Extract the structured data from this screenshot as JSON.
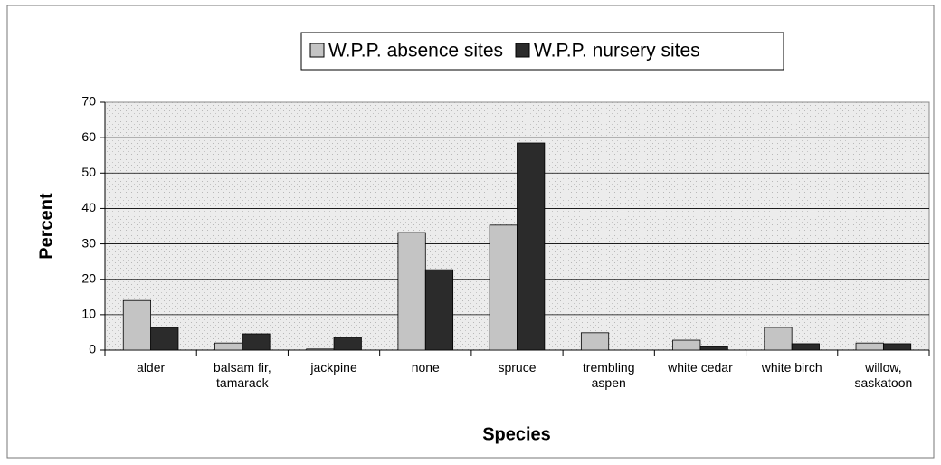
{
  "chart_data": {
    "type": "bar",
    "categories": [
      "alder",
      "balsam fir, tamarack",
      "jackpine",
      "none",
      "spruce",
      "trembling aspen",
      "white cedar",
      "white birch",
      "willow, saskatoon"
    ],
    "series": [
      {
        "name": "W.P.P. absence sites",
        "color": "#c4c4c4",
        "values": [
          14.0,
          2.0,
          0.3,
          33.2,
          35.3,
          4.9,
          2.8,
          6.4,
          2.0
        ]
      },
      {
        "name": "W.P.P. nursery sites",
        "color": "#2b2b2b",
        "values": [
          6.4,
          4.6,
          3.6,
          22.7,
          58.5,
          0,
          1.0,
          1.8,
          1.8
        ]
      }
    ],
    "ylim": [
      0,
      70
    ],
    "yticks": [
      0,
      10,
      20,
      30,
      40,
      50,
      60,
      70
    ],
    "grid": true,
    "y_label": "Percent",
    "x_label": "Species",
    "legend": "top"
  }
}
